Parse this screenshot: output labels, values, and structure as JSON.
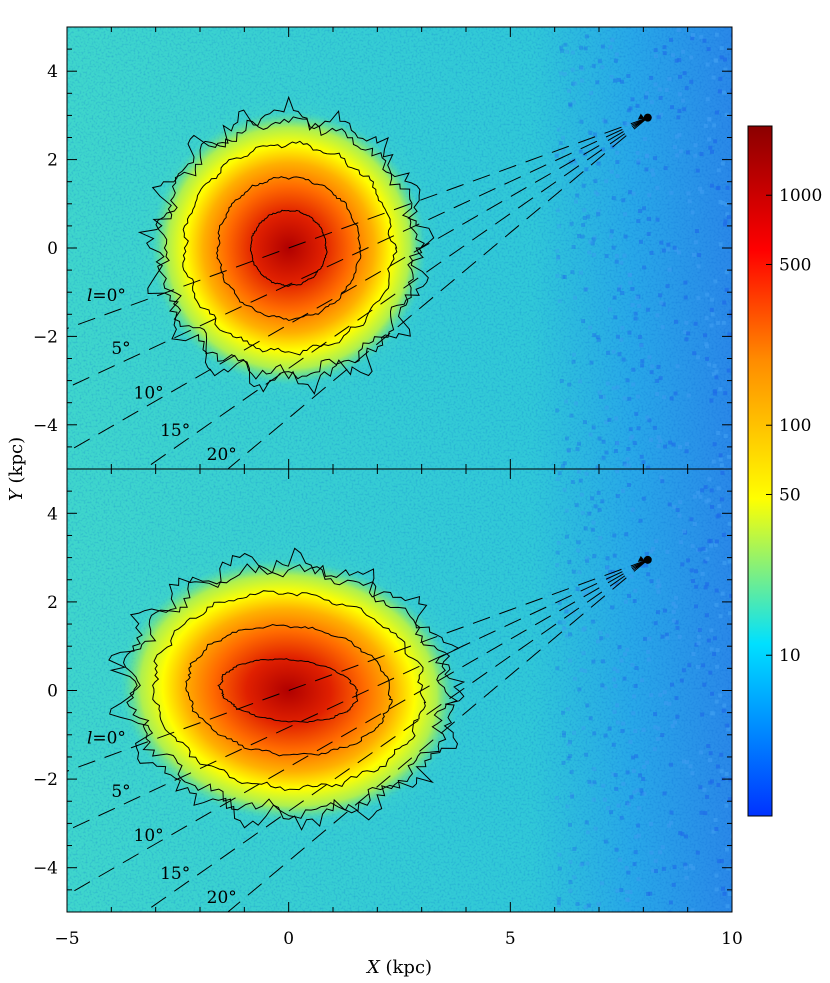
{
  "chart_data": {
    "type": "heatmap",
    "xlabel_var": "X",
    "xlabel_unit": " (kpc)",
    "ylabel_var": "Y",
    "ylabel_unit": " (kpc)",
    "xlim": [
      -5,
      10
    ],
    "ylim": [
      -5,
      5
    ],
    "x_ticks": [
      -5,
      0,
      5,
      10
    ],
    "x_tick_labels": [
      "−5",
      "0",
      "5",
      "10"
    ],
    "y_ticks": [
      -4,
      -2,
      0,
      2,
      4
    ],
    "y_tick_labels": [
      "−4",
      "−2",
      "0",
      "2",
      "4"
    ],
    "sun_position": [
      8.1,
      2.95
    ],
    "colorbar": {
      "scale": "log",
      "range": [
        2,
        2000
      ],
      "ticks": [
        10,
        50,
        100,
        500,
        1000
      ],
      "tick_labels": [
        "10",
        "50",
        "100",
        "500",
        "1000"
      ],
      "colors": [
        "#0033ff",
        "#00e0ff",
        "#ffff00",
        "#ff8c00",
        "#ff0000",
        "#8b0000"
      ]
    },
    "longitude_lines_deg": [
      0,
      5,
      10,
      15,
      20
    ],
    "longitude_labels": [
      {
        "var": "l",
        "text": "=0°"
      },
      {
        "var": "",
        "text": "5°"
      },
      {
        "var": "",
        "text": "10°"
      },
      {
        "var": "",
        "text": "15°"
      },
      {
        "var": "",
        "text": "20°"
      }
    ],
    "panels": [
      {
        "name": "top",
        "bar": {
          "center": [
            0,
            0
          ],
          "semi_axes": [
            1.6,
            1.6
          ],
          "angle_deg": 0
        }
      },
      {
        "name": "bottom",
        "bar": {
          "center": [
            0,
            0
          ],
          "semi_axes": [
            2.3,
            1.45
          ],
          "angle_deg": -5
        }
      }
    ]
  }
}
